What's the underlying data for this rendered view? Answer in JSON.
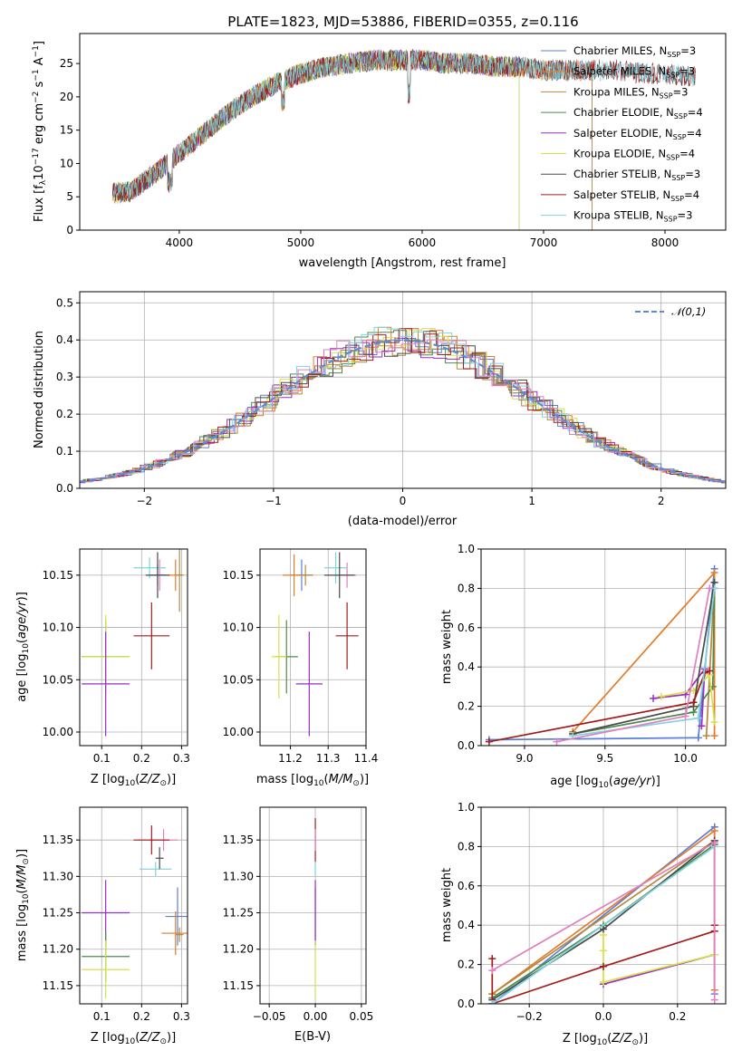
{
  "chart_data": [
    {
      "id": "spectrum",
      "type": "line",
      "title": "PLATE=1823, MJD=53886, FIBERID=0355, z=0.116",
      "xlabel": "wavelength [Angstrom, rest frame]",
      "ylabel": "Flux [f_λ 10^-17 erg cm^-2 s^-1 A^-1]",
      "xlim": [
        3180,
        8500
      ],
      "ylim": [
        0,
        29.5
      ],
      "xticks": [
        4000,
        5000,
        6000,
        7000,
        8000
      ],
      "yticks": [
        0,
        5,
        10,
        15,
        20,
        25
      ],
      "continuum": {
        "x": [
          3450,
          3600,
          3800,
          4000,
          4200,
          4400,
          4600,
          4800,
          5000,
          5200,
          5400,
          5600,
          5800,
          6000,
          6200,
          6400,
          6600,
          6800,
          7000,
          7200,
          7400,
          7600,
          7800,
          8000,
          8250
        ],
        "y": [
          5.5,
          5.8,
          8.5,
          11.5,
          14.5,
          17.5,
          20.0,
          22.0,
          23.5,
          24.5,
          25.0,
          25.5,
          25.5,
          25.5,
          25.0,
          25.0,
          24.5,
          24.5,
          24.0,
          24.0,
          24.0,
          24.0,
          23.5,
          23.5,
          23.0
        ]
      },
      "series": [
        {
          "name": "Chabrier MILES, N_SSP=3",
          "color": "#5b7fd6",
          "xmax": 7400
        },
        {
          "name": "Salpeter MILES, N_SSP=3",
          "color": "#e17c2c",
          "xmax": 7400
        },
        {
          "name": "Kroupa MILES, N_SSP=3",
          "color": "#b8863b",
          "xmax": 7400
        },
        {
          "name": "Chabrier ELODIE, N_SSP=4",
          "color": "#4d8b48",
          "xmax": 6800
        },
        {
          "name": "Salpeter ELODIE, N_SSP=4",
          "color": "#9a2ec0",
          "xmax": 6800
        },
        {
          "name": "Kroupa ELODIE, N_SSP=4",
          "color": "#d7e04a",
          "xmax": 6800
        },
        {
          "name": "Chabrier STELIB, N_SSP=3",
          "color": "#4a4a4a",
          "xmax": 8250
        },
        {
          "name": "Salpeter STELIB, N_SSP=4",
          "color": "#a41b1b",
          "xmax": 8250
        },
        {
          "name": "Kroupa STELIB, N_SSP=3",
          "color": "#7fd3de",
          "xmax": 8250
        }
      ]
    },
    {
      "id": "residuals",
      "type": "line",
      "xlabel": "(data-model)/error",
      "ylabel": "Normed distribution",
      "xlim": [
        -2.5,
        2.5
      ],
      "ylim": [
        0,
        0.53
      ],
      "xticks": [
        -2,
        -1,
        0,
        1,
        2
      ],
      "yticks": [
        0.0,
        0.1,
        0.2,
        0.3,
        0.4,
        0.5
      ],
      "legend": "𝒩(0,1)",
      "normal_curve_color": "#5b8bd6",
      "bin_width": 0.1,
      "series_colors": [
        "#5b7fd6",
        "#e17c2c",
        "#b8863b",
        "#4d8b48",
        "#9a2ec0",
        "#d7e04a",
        "#4a4a4a",
        "#a41b1b",
        "#7fd3de",
        "#e080c0"
      ]
    },
    {
      "id": "age-vs-Z",
      "type": "scatter",
      "xlabel": "Z [log10(Z/Z⊙)]",
      "ylabel": "age  [log10(age/yr)]",
      "xlim": [
        0.045,
        0.315
      ],
      "ylim": [
        9.987,
        10.175
      ],
      "xticks": [
        0.1,
        0.2,
        0.3
      ],
      "yticks": [
        10.0,
        10.05,
        10.1,
        10.15
      ],
      "points": [
        {
          "color": "#e080c0",
          "x": 0.245,
          "xerr": 0.02,
          "y": 10.15,
          "yerr": 0.015
        },
        {
          "color": "#7fd3de",
          "x": 0.22,
          "xerr": 0.04,
          "y": 10.157,
          "yerr": 0.01
        },
        {
          "color": "#5b7fd6",
          "x": 0.24,
          "xerr": 0.02,
          "y": 10.15,
          "yerr": 0.01
        },
        {
          "color": "#e17c2c",
          "x": 0.285,
          "xerr": 0.02,
          "y": 10.15,
          "yerr": 0.015
        },
        {
          "color": "#4a4a4a",
          "x": 0.24,
          "xerr": 0.03,
          "y": 10.15,
          "yerr": 0.022
        },
        {
          "color": "#a41b1b",
          "x": 0.225,
          "xerr": 0.045,
          "y": 10.092,
          "yerr": 0.032
        },
        {
          "color": "#b8863b",
          "x": 0.295,
          "xerr": 0.01,
          "y": 10.15,
          "yerr": 0.035
        },
        {
          "color": "#4d8b48",
          "x": 0.11,
          "xerr": 0.06,
          "y": 10.072,
          "yerr": 0.035
        },
        {
          "color": "#d7e04a",
          "x": 0.11,
          "xerr": 0.06,
          "y": 10.072,
          "yerr": 0.04
        },
        {
          "color": "#9a2ec0",
          "x": 0.11,
          "xerr": 0.06,
          "y": 10.046,
          "yerr": 0.05
        }
      ]
    },
    {
      "id": "age-vs-mass",
      "type": "scatter",
      "xlabel": "mass [log10(M/M⊙)]",
      "ylabel": "",
      "xlim": [
        11.12,
        11.4
      ],
      "ylim": [
        9.987,
        10.175
      ],
      "xticks": [
        11.2,
        11.3,
        11.4
      ],
      "yticks": [
        10.0,
        10.05,
        10.1,
        10.15
      ],
      "points": [
        {
          "color": "#e080c0",
          "x": 11.35,
          "xerr": 0.025,
          "y": 10.15,
          "yerr": 0.012
        },
        {
          "color": "#7fd3de",
          "x": 11.32,
          "xerr": 0.03,
          "y": 10.157,
          "yerr": 0.015
        },
        {
          "color": "#5b7fd6",
          "x": 11.23,
          "xerr": 0.03,
          "y": 10.15,
          "yerr": 0.015
        },
        {
          "color": "#e17c2c",
          "x": 11.21,
          "xerr": 0.03,
          "y": 10.15,
          "yerr": 0.02
        },
        {
          "color": "#4a4a4a",
          "x": 11.33,
          "xerr": 0.04,
          "y": 10.15,
          "yerr": 0.022
        },
        {
          "color": "#a41b1b",
          "x": 11.35,
          "xerr": 0.03,
          "y": 10.092,
          "yerr": 0.032
        },
        {
          "color": "#b8863b",
          "x": 11.24,
          "xerr": 0.02,
          "y": 10.15,
          "yerr": 0.01
        },
        {
          "color": "#4d8b48",
          "x": 11.19,
          "xerr": 0.03,
          "y": 10.072,
          "yerr": 0.035
        },
        {
          "color": "#d7e04a",
          "x": 11.17,
          "xerr": 0.02,
          "y": 10.072,
          "yerr": 0.04
        },
        {
          "color": "#9a2ec0",
          "x": 11.25,
          "xerr": 0.035,
          "y": 10.046,
          "yerr": 0.05
        }
      ]
    },
    {
      "id": "weight-vs-age",
      "type": "line",
      "xlabel": "age  [log10(age/yr)]",
      "ylabel": "mass weight",
      "xlim": [
        8.73,
        10.25
      ],
      "ylim": [
        0,
        1
      ],
      "xticks": [
        9.0,
        9.5,
        10.0
      ],
      "yticks": [
        0.0,
        0.2,
        0.4,
        0.6,
        0.8,
        1.0
      ],
      "series": [
        {
          "color": "#5b7fd6",
          "x": [
            8.78,
            10.08,
            10.18
          ],
          "y": [
            0.03,
            0.04,
            0.9
          ]
        },
        {
          "color": "#e17c2c",
          "x": [
            9.3,
            10.18,
            10.18
          ],
          "y": [
            0.07,
            0.88,
            0.05
          ]
        },
        {
          "color": "#b8863b",
          "x": [
            10.13,
            10.18
          ],
          "y": [
            0.05,
            0.83
          ]
        },
        {
          "color": "#4d8b48",
          "x": [
            9.3,
            10.05,
            10.17,
            10.18
          ],
          "y": [
            0.06,
            0.17,
            0.3,
            0.8
          ]
        },
        {
          "color": "#9a2ec0",
          "x": [
            9.8,
            10.0,
            10.12,
            10.1
          ],
          "y": [
            0.24,
            0.26,
            0.39,
            0.1
          ]
        },
        {
          "color": "#d7e04a",
          "x": [
            9.85,
            10.05,
            10.15,
            10.18
          ],
          "y": [
            0.25,
            0.28,
            0.36,
            0.12
          ]
        },
        {
          "color": "#4a4a4a",
          "x": [
            9.3,
            10.05,
            10.18
          ],
          "y": [
            0.06,
            0.2,
            0.83
          ]
        },
        {
          "color": "#a41b1b",
          "x": [
            8.78,
            10.05,
            10.12,
            10.15
          ],
          "y": [
            0.02,
            0.22,
            0.37,
            0.38
          ]
        },
        {
          "color": "#7fd3de",
          "x": [
            9.3,
            10.08,
            10.18
          ],
          "y": [
            0.05,
            0.14,
            0.8
          ]
        },
        {
          "color": "#e080c0",
          "x": [
            9.2,
            10.0,
            10.15
          ],
          "y": [
            0.02,
            0.15,
            0.8
          ]
        }
      ]
    },
    {
      "id": "mass-vs-Z",
      "type": "scatter",
      "xlabel": "Z [log10(Z/Z⊙)]",
      "ylabel": "mass [log10(M/M⊙)]",
      "xlim": [
        0.045,
        0.315
      ],
      "ylim": [
        11.125,
        11.395
      ],
      "xticks": [
        0.1,
        0.2,
        0.3
      ],
      "yticks": [
        11.15,
        11.2,
        11.25,
        11.3,
        11.35
      ],
      "points": [
        {
          "color": "#e080c0",
          "x": 0.255,
          "xerr": 0.035,
          "y": 11.35,
          "yerr": 0.015
        },
        {
          "color": "#7fd3de",
          "x": 0.235,
          "xerr": 0.04,
          "y": 11.31,
          "yerr": 0.01
        },
        {
          "color": "#a41b1b",
          "x": 0.225,
          "xerr": 0.045,
          "y": 11.35,
          "yerr": 0.02
        },
        {
          "color": "#4a4a4a",
          "x": 0.245,
          "xerr": 0.01,
          "y": 11.325,
          "yerr": 0.015
        },
        {
          "color": "#5b7fd6",
          "x": 0.29,
          "xerr": 0.03,
          "y": 11.245,
          "yerr": 0.04
        },
        {
          "color": "#e17c2c",
          "x": 0.285,
          "xerr": 0.035,
          "y": 11.222,
          "yerr": 0.03
        },
        {
          "color": "#b8863b",
          "x": 0.295,
          "xerr": 0.01,
          "y": 11.22,
          "yerr": 0.01
        },
        {
          "color": "#9a2ec0",
          "x": 0.11,
          "xerr": 0.06,
          "y": 11.25,
          "yerr": 0.045
        },
        {
          "color": "#4d8b48",
          "x": 0.11,
          "xerr": 0.06,
          "y": 11.19,
          "yerr": 0.035
        },
        {
          "color": "#d7e04a",
          "x": 0.11,
          "xerr": 0.06,
          "y": 11.172,
          "yerr": 0.04
        }
      ]
    },
    {
      "id": "mass-vs-ebv",
      "type": "scatter",
      "xlabel": "E(B-V)",
      "ylabel": "",
      "xlim": [
        -0.06,
        0.055
      ],
      "ylim": [
        11.125,
        11.395
      ],
      "xticks": [
        -0.05,
        0.0,
        0.05
      ],
      "yticks": [
        11.15,
        11.2,
        11.25,
        11.3,
        11.35
      ],
      "points": [
        {
          "color": "#a41b1b",
          "x": 0,
          "xerr": 0,
          "y": 11.35,
          "yerr": 0.03
        },
        {
          "color": "#e080c0",
          "x": 0,
          "xerr": 0,
          "y": 11.35,
          "yerr": 0.015
        },
        {
          "color": "#7fd3de",
          "x": 0,
          "xerr": 0,
          "y": 11.31,
          "yerr": 0.01
        },
        {
          "color": "#5b7fd6",
          "x": 0,
          "xerr": 0,
          "y": 11.245,
          "yerr": 0.04
        },
        {
          "color": "#9a2ec0",
          "x": 0,
          "xerr": 0,
          "y": 11.25,
          "yerr": 0.045
        },
        {
          "color": "#d7e04a",
          "x": 0,
          "xerr": 0,
          "y": 11.172,
          "yerr": 0.04
        }
      ]
    },
    {
      "id": "weight-vs-Z",
      "type": "line",
      "xlabel": "Z [log10(Z/Z⊙)]",
      "ylabel": "mass weight",
      "xlim": [
        -0.33,
        0.33
      ],
      "ylim": [
        0,
        1
      ],
      "xticks": [
        -0.2,
        0.0,
        0.2
      ],
      "yticks": [
        0.0,
        0.2,
        0.4,
        0.6,
        0.8,
        1.0
      ],
      "series": [
        {
          "color": "#5b7fd6",
          "x": [
            -0.3,
            0.3,
            0.3
          ],
          "y": [
            0.0,
            0.9,
            0.05
          ]
        },
        {
          "color": "#e17c2c",
          "x": [
            -0.3,
            0.3,
            0.3
          ],
          "y": [
            0.05,
            0.88,
            0.07
          ]
        },
        {
          "color": "#b8863b",
          "x": [
            -0.3,
            0.3
          ],
          "y": [
            0.05,
            0.83
          ]
        },
        {
          "color": "#4d8b48",
          "x": [
            -0.3,
            0.0,
            0.3
          ],
          "y": [
            0.03,
            0.4,
            0.81
          ]
        },
        {
          "color": "#9a2ec0",
          "x": [
            0.0,
            0.3
          ],
          "y": [
            0.1,
            0.25
          ]
        },
        {
          "color": "#d7e04a",
          "x": [
            0.0,
            0.0,
            0.0,
            0.3
          ],
          "y": [
            0.35,
            0.27,
            0.11,
            0.25
          ]
        },
        {
          "color": "#4a4a4a",
          "x": [
            -0.3,
            0.0,
            0.3
          ],
          "y": [
            0.02,
            0.38,
            0.83
          ]
        },
        {
          "color": "#a41b1b",
          "x": [
            -0.3,
            -0.3,
            0.0,
            0.3,
            0.3
          ],
          "y": [
            0.23,
            0.0,
            0.19,
            0.37,
            0.4
          ]
        },
        {
          "color": "#7fd3de",
          "x": [
            -0.3,
            0.3
          ],
          "y": [
            0.0,
            0.8
          ]
        },
        {
          "color": "#e080c0",
          "x": [
            -0.3,
            0.3,
            0.3
          ],
          "y": [
            0.17,
            0.82,
            0.02
          ]
        }
      ]
    }
  ]
}
